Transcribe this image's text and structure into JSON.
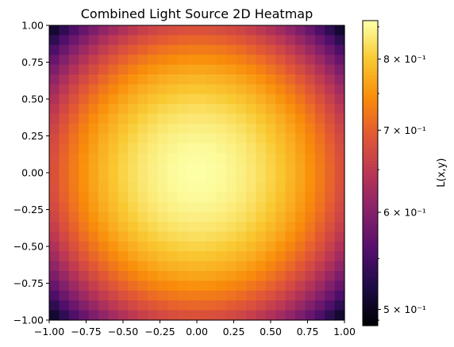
{
  "chart_data": {
    "type": "heatmap",
    "title": "Combined Light Source 2D Heatmap",
    "xlabel": "",
    "ylabel": "",
    "xlim": [
      -1.0,
      1.0
    ],
    "ylim": [
      -1.0,
      1.0
    ],
    "x_ticks": [
      "−1.00",
      "−0.75",
      "−0.50",
      "−0.25",
      "0.00",
      "0.25",
      "0.50",
      "0.75",
      "1.00"
    ],
    "y_ticks": [
      "−1.00",
      "−0.75",
      "−0.50",
      "−0.25",
      "0.00",
      "0.25",
      "0.50",
      "0.75",
      "1.00"
    ],
    "grid_size": 30,
    "value_model": "L(x,y) = 0.86 - 0.1875 * (x^2 + y^2) (approximately; peak near center)",
    "center_value": 0.86,
    "corner_value": 0.485,
    "colorbar": {
      "label": "L(x,y)",
      "scale": "log",
      "min": 0.485,
      "max": 0.86,
      "tick_values": [
        0.5,
        0.6,
        0.7,
        0.8
      ],
      "tick_labels": [
        "5 × 10⁻¹",
        "6 × 10⁻¹",
        "7 × 10⁻¹",
        "8 × 10⁻¹"
      ]
    },
    "colormap": "inferno",
    "grid": false
  }
}
